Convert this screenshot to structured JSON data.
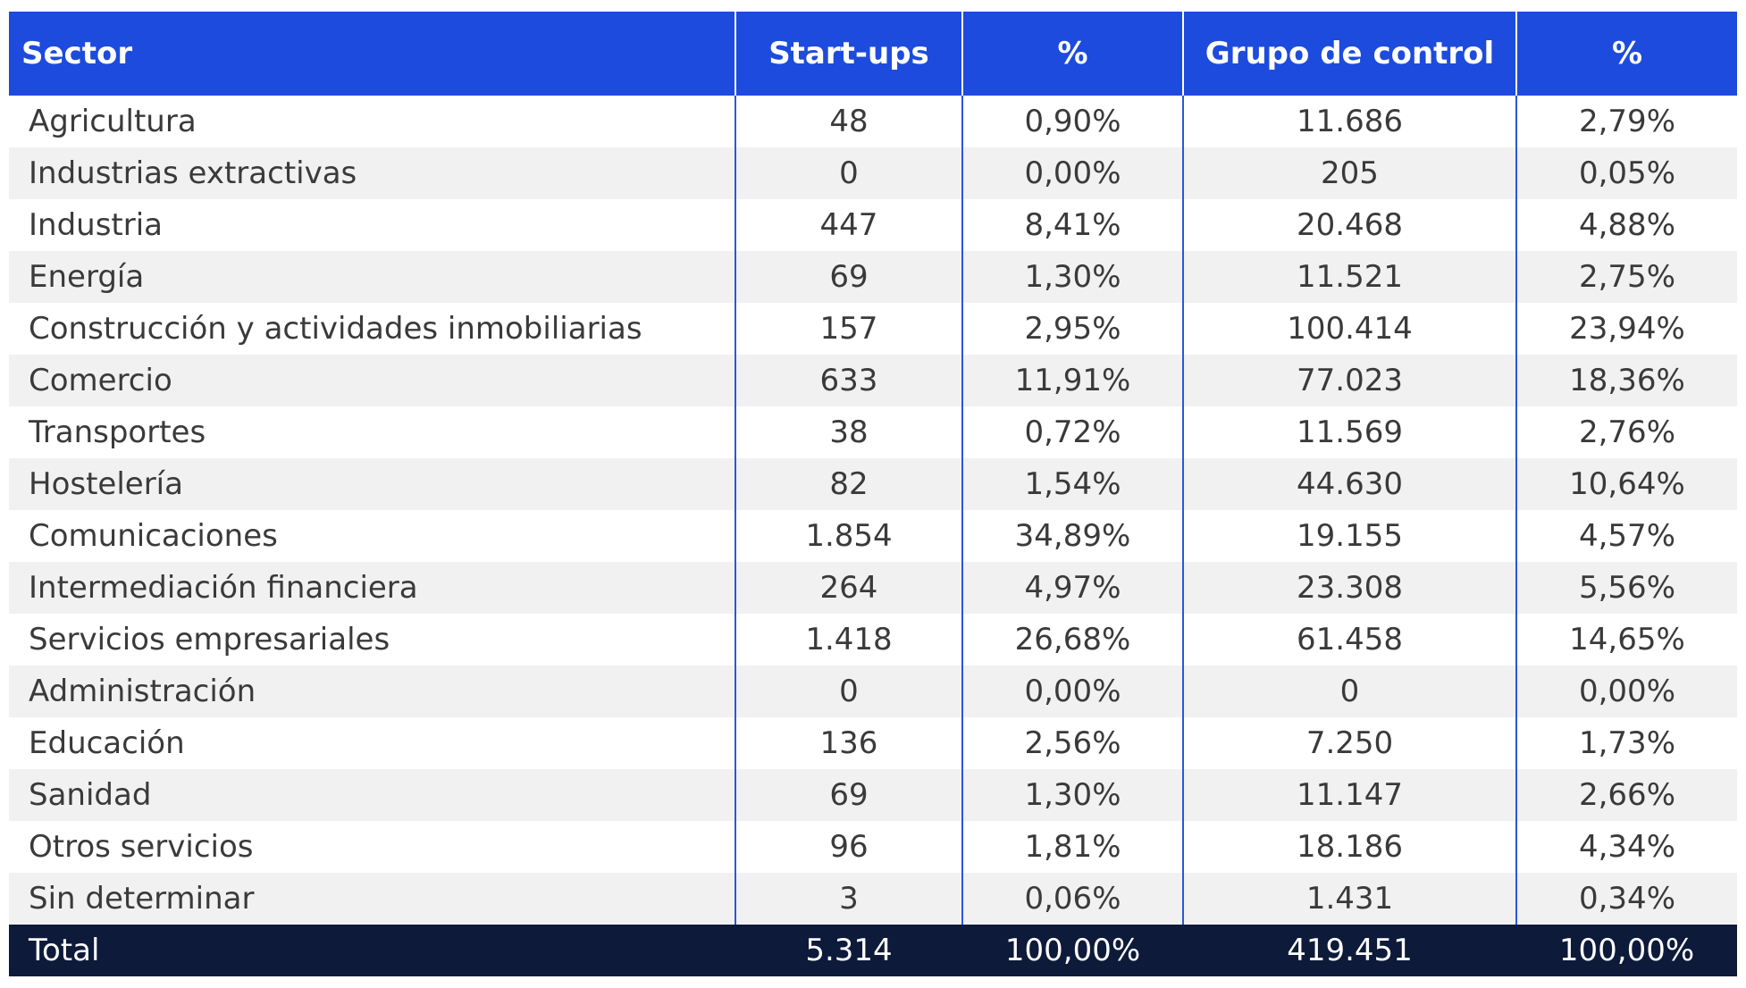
{
  "table": {
    "headers": [
      "Sector",
      "Start-ups",
      "%",
      "Grupo de control",
      "%"
    ],
    "rows": [
      [
        "Agricultura",
        "48",
        "0,90%",
        "11.686",
        "2,79%"
      ],
      [
        "Industrias extractivas",
        "0",
        "0,00%",
        "205",
        "0,05%"
      ],
      [
        "Industria",
        "447",
        "8,41%",
        "20.468",
        "4,88%"
      ],
      [
        "Energía",
        "69",
        "1,30%",
        "11.521",
        "2,75%"
      ],
      [
        "Construcción y actividades inmobiliarias",
        "157",
        "2,95%",
        "100.414",
        "23,94%"
      ],
      [
        "Comercio",
        "633",
        "11,91%",
        "77.023",
        "18,36%"
      ],
      [
        "Transportes",
        "38",
        "0,72%",
        "11.569",
        "2,76%"
      ],
      [
        "Hostelería",
        "82",
        "1,54%",
        "44.630",
        "10,64%"
      ],
      [
        "Comunicaciones",
        "1.854",
        "34,89%",
        "19.155",
        "4,57%"
      ],
      [
        "Intermediación financiera",
        "264",
        "4,97%",
        "23.308",
        "5,56%"
      ],
      [
        "Servicios empresariales",
        "1.418",
        "26,68%",
        "61.458",
        "14,65%"
      ],
      [
        "Administración",
        "0",
        "0,00%",
        "0",
        "0,00%"
      ],
      [
        "Educación",
        "136",
        "2,56%",
        "7.250",
        "1,73%"
      ],
      [
        "Sanidad",
        "69",
        "1,30%",
        "11.147",
        "2,66%"
      ],
      [
        "Otros servicios",
        "96",
        "1,81%",
        "18.186",
        "4,34%"
      ],
      [
        "Sin determinar",
        "3",
        "0,06%",
        "1.431",
        "0,34%"
      ]
    ],
    "total": [
      "Total",
      "5.314",
      "100,00%",
      "419.451",
      "100,00%"
    ]
  },
  "colors": {
    "header_bg": "#1d4bdd",
    "total_bg": "#0e1a3a",
    "stripe_bg": "#f1f1f1",
    "divider": "#2d55dc"
  }
}
